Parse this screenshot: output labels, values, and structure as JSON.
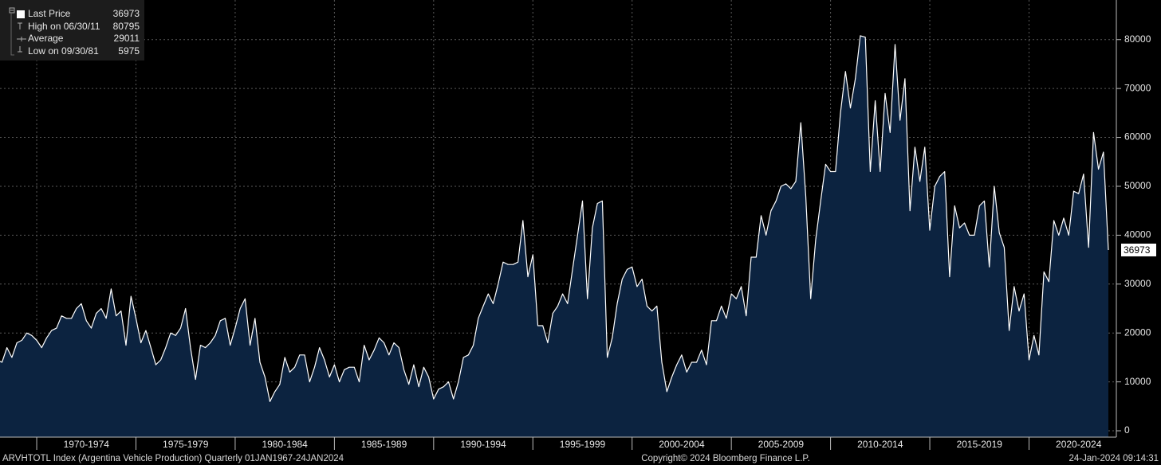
{
  "chart_data": {
    "type": "area-line",
    "title": "ARVHTOTL Index (Argentina Vehicle Production)  Quarterly 01JAN1967-24JAN2024",
    "copyright": "Copyright© 2024 Bloomberg Finance L.P.",
    "timestamp": "24-Jan-2024 09:14:31",
    "x": [
      1968,
      1968.25,
      1968.5,
      1968.75,
      1969,
      1969.25,
      1969.5,
      1969.75,
      1970,
      1970.25,
      1970.5,
      1970.75,
      1971,
      1971.25,
      1971.5,
      1971.75,
      1972,
      1972.25,
      1972.5,
      1972.75,
      1973,
      1973.25,
      1973.5,
      1973.75,
      1974,
      1974.25,
      1974.5,
      1974.75,
      1975,
      1975.25,
      1975.5,
      1975.75,
      1976,
      1976.25,
      1976.5,
      1976.75,
      1977,
      1977.25,
      1977.5,
      1977.75,
      1978,
      1978.25,
      1978.5,
      1978.75,
      1979,
      1979.25,
      1979.5,
      1979.75,
      1980,
      1980.25,
      1980.5,
      1980.75,
      1981,
      1981.25,
      1981.5,
      1981.75,
      1982,
      1982.25,
      1982.5,
      1982.75,
      1983,
      1983.25,
      1983.5,
      1983.75,
      1984,
      1984.25,
      1984.5,
      1984.75,
      1985,
      1985.25,
      1985.5,
      1985.75,
      1986,
      1986.25,
      1986.5,
      1986.75,
      1987,
      1987.25,
      1987.5,
      1987.75,
      1988,
      1988.25,
      1988.5,
      1988.75,
      1989,
      1989.25,
      1989.5,
      1989.75,
      1990,
      1990.25,
      1990.5,
      1990.75,
      1991,
      1991.25,
      1991.5,
      1991.75,
      1992,
      1992.25,
      1992.5,
      1992.75,
      1993,
      1993.25,
      1993.5,
      1993.75,
      1994,
      1994.25,
      1994.5,
      1994.75,
      1995,
      1995.25,
      1995.5,
      1995.75,
      1996,
      1996.25,
      1996.5,
      1996.75,
      1997,
      1997.25,
      1997.5,
      1997.75,
      1998,
      1998.25,
      1998.5,
      1998.75,
      1999,
      1999.25,
      1999.5,
      1999.75,
      2000,
      2000.25,
      2000.5,
      2000.75,
      2001,
      2001.25,
      2001.5,
      2001.75,
      2002,
      2002.25,
      2002.5,
      2002.75,
      2003,
      2003.25,
      2003.5,
      2003.75,
      2004,
      2004.25,
      2004.5,
      2004.75,
      2005,
      2005.25,
      2005.5,
      2005.75,
      2006,
      2006.25,
      2006.5,
      2006.75,
      2007,
      2007.25,
      2007.5,
      2007.75,
      2008,
      2008.25,
      2008.5,
      2008.75,
      2009,
      2009.25,
      2009.5,
      2009.75,
      2010,
      2010.25,
      2010.5,
      2010.75,
      2011,
      2011.25,
      2011.5,
      2011.75,
      2012,
      2012.25,
      2012.5,
      2012.75,
      2013,
      2013.25,
      2013.5,
      2013.75,
      2014,
      2014.25,
      2014.5,
      2014.75,
      2015,
      2015.25,
      2015.5,
      2015.75,
      2016,
      2016.25,
      2016.5,
      2016.75,
      2017,
      2017.25,
      2017.5,
      2017.75,
      2018,
      2018.25,
      2018.5,
      2018.75,
      2019,
      2019.25,
      2019.5,
      2019.75,
      2020,
      2020.25,
      2020.5,
      2020.75,
      2021,
      2021.25,
      2021.5,
      2021.75,
      2022,
      2022.25,
      2022.5,
      2022.75,
      2023,
      2023.25,
      2023.5,
      2023.75,
      2024
    ],
    "series": [
      {
        "name": "Last Price",
        "color": "#ffffff",
        "fill": "#0c2340",
        "values": [
          14500,
          14000,
          17000,
          15000,
          18000,
          18500,
          20000,
          19500,
          18500,
          17000,
          19000,
          20500,
          21000,
          23500,
          23000,
          23000,
          25000,
          26000,
          22500,
          21000,
          24000,
          25000,
          23000,
          29000,
          23500,
          24500,
          17500,
          27500,
          23000,
          18000,
          20500,
          17000,
          13500,
          14500,
          17000,
          20000,
          19500,
          21000,
          25000,
          17000,
          10500,
          17500,
          17000,
          18000,
          19500,
          22500,
          23000,
          17500,
          21000,
          25000,
          27000,
          17500,
          23000,
          14000,
          11000,
          5975,
          8000,
          9500,
          15000,
          12000,
          13000,
          15500,
          15500,
          10000,
          13000,
          17000,
          14500,
          11000,
          13500,
          10000,
          12500,
          13000,
          13000,
          10000,
          17500,
          14500,
          16500,
          19000,
          18000,
          15500,
          18000,
          17000,
          12500,
          9500,
          13500,
          9000,
          13000,
          11000,
          6500,
          8500,
          9000,
          10000,
          6500,
          10000,
          15000,
          15500,
          17500,
          23000,
          25500,
          28000,
          26000,
          30000,
          34500,
          34000,
          34000,
          34500,
          43000,
          31500,
          36000,
          21500,
          21500,
          18000,
          24000,
          25500,
          28000,
          26000,
          33000,
          40000,
          47000,
          27000,
          41500,
          46500,
          47000,
          15000,
          19000,
          26000,
          31000,
          33000,
          33500,
          29500,
          31000,
          25500,
          24500,
          25500,
          14000,
          8000,
          11000,
          13500,
          15500,
          12000,
          14000,
          14000,
          16500,
          13500,
          22500,
          22500,
          25500,
          23000,
          28000,
          27000,
          29500,
          23500,
          35500,
          35500,
          44000,
          40000,
          45000,
          47000,
          50000,
          50500,
          49500,
          51000,
          63000,
          48000,
          27000,
          39000,
          47000,
          54500,
          53000,
          53000,
          65000,
          73500,
          66000,
          72000,
          80795,
          80500,
          53000,
          67500,
          53000,
          69000,
          61000,
          79000,
          63500,
          72000,
          45000,
          58000,
          51000,
          58000,
          41000,
          50000,
          52000,
          53000,
          31500,
          46000,
          41500,
          42500,
          40000,
          40000,
          46000,
          47000,
          33500,
          50000,
          40500,
          37500,
          20500,
          29500,
          24500,
          28000,
          14500,
          19500,
          15500,
          32500,
          30500,
          43000,
          40000,
          43500,
          40000,
          49000,
          48500,
          52500,
          37500,
          61000,
          53500,
          57000,
          36973
        ]
      }
    ],
    "stats": [
      {
        "label": "High on 06/30/11",
        "value": 80795
      },
      {
        "label": "Average",
        "value": 29011
      },
      {
        "label": "Low on 09/30/81",
        "value": 5975
      }
    ],
    "xlim": [
      1968.15,
      2024.4
    ],
    "xticks": [
      {
        "value": 1972.5,
        "label": "1970-1974"
      },
      {
        "value": 1977.5,
        "label": "1975-1979"
      },
      {
        "value": 1982.5,
        "label": "1980-1984"
      },
      {
        "value": 1987.5,
        "label": "1985-1989"
      },
      {
        "value": 1992.5,
        "label": "1990-1994"
      },
      {
        "value": 1997.5,
        "label": "1995-1999"
      },
      {
        "value": 2002.5,
        "label": "2000-2004"
      },
      {
        "value": 2007.5,
        "label": "2005-2009"
      },
      {
        "value": 2012.5,
        "label": "2010-2014"
      },
      {
        "value": 2017.5,
        "label": "2015-2019"
      },
      {
        "value": 2022.5,
        "label": "2020-2024"
      }
    ],
    "xseparators": [
      1970,
      1975,
      1980,
      1985,
      1990,
      1995,
      2000,
      2005,
      2010,
      2015,
      2020
    ],
    "ylim": [
      -1300,
      88100
    ],
    "yticks": [
      0,
      10000,
      20000,
      30000,
      40000,
      50000,
      60000,
      70000,
      80000
    ],
    "grid": true
  }
}
